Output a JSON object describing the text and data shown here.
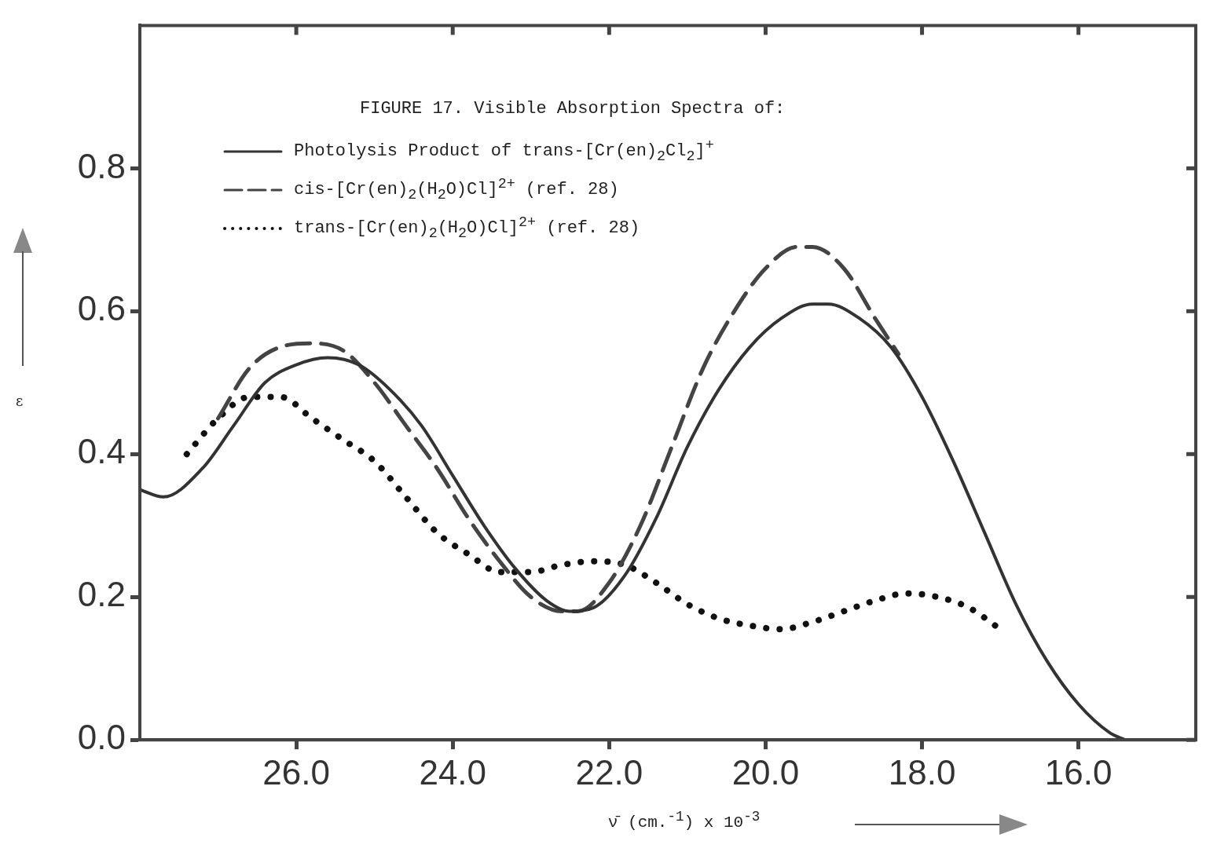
{
  "chart_data": {
    "type": "line",
    "title": "FIGURE 17. Visible Absorption Spectra of:",
    "xlabel": "ν̄ (cm.$^{-1}$) x 10$^{-3}$",
    "ylabel": "ε",
    "series": [
      {
        "name": "Photolysis Product of trans-[Cr(en)$_{2}$Cl$_{2}$]$^{+}$",
        "color": "#333333",
        "line_style": "solid",
        "x": [
          28.0,
          27.7,
          27.2,
          26.8,
          26.4,
          26.0,
          25.6,
          25.2,
          24.8,
          24.4,
          24.0,
          23.6,
          23.2,
          22.8,
          22.5,
          22.2,
          21.8,
          21.4,
          21.0,
          20.6,
          20.2,
          19.8,
          19.4,
          19.2,
          18.8,
          18.4,
          18.0,
          17.6,
          17.2,
          16.8,
          16.4,
          16.0,
          15.6,
          15.4
        ],
        "values": [
          0.35,
          0.34,
          0.38,
          0.44,
          0.5,
          0.525,
          0.535,
          0.525,
          0.49,
          0.44,
          0.37,
          0.3,
          0.24,
          0.195,
          0.18,
          0.185,
          0.23,
          0.31,
          0.41,
          0.49,
          0.55,
          0.59,
          0.61,
          0.61,
          0.59,
          0.55,
          0.48,
          0.39,
          0.29,
          0.19,
          0.11,
          0.05,
          0.01,
          0.0
        ]
      },
      {
        "name": "cis-[Cr(en)$_{2}$(H$_{2}$O)Cl]$^{2+}$ (ref. 28)",
        "color": "#444444",
        "line_style": "dashed",
        "x": [
          27.0,
          26.6,
          26.2,
          25.8,
          25.4,
          25.0,
          24.6,
          24.2,
          23.8,
          23.4,
          23.0,
          22.6,
          22.4,
          22.0,
          21.6,
          21.2,
          20.8,
          20.4,
          20.0,
          19.6,
          19.4,
          19.0,
          18.6,
          18.3
        ],
        "values": [
          0.45,
          0.52,
          0.55,
          0.555,
          0.545,
          0.5,
          0.44,
          0.38,
          0.31,
          0.25,
          0.2,
          0.18,
          0.18,
          0.22,
          0.3,
          0.41,
          0.52,
          0.6,
          0.66,
          0.69,
          0.69,
          0.66,
          0.59,
          0.54
        ]
      },
      {
        "name": "trans-[Cr(en)$_{2}$(H$_{2}$O)Cl]$^{2+}$ (ref. 28)",
        "color": "#111111",
        "line_style": "dotted",
        "x": [
          27.4,
          27.0,
          26.6,
          26.2,
          25.8,
          25.4,
          25.0,
          24.6,
          24.2,
          23.8,
          23.4,
          23.0,
          22.6,
          22.2,
          21.8,
          21.4,
          21.0,
          20.6,
          20.2,
          19.8,
          19.4,
          19.0,
          18.6,
          18.2,
          17.8,
          17.4,
          17.0
        ],
        "values": [
          0.4,
          0.45,
          0.48,
          0.48,
          0.45,
          0.42,
          0.39,
          0.34,
          0.29,
          0.26,
          0.235,
          0.235,
          0.245,
          0.25,
          0.245,
          0.22,
          0.19,
          0.17,
          0.16,
          0.155,
          0.165,
          0.18,
          0.195,
          0.205,
          0.2,
          0.185,
          0.155
        ]
      }
    ],
    "xlim": [
      28.0,
      14.5
    ],
    "xticks": [
      {
        "value": 26,
        "label": "26.0"
      },
      {
        "value": 24,
        "label": "24.0"
      },
      {
        "value": 22,
        "label": "22.0"
      },
      {
        "value": 20,
        "label": "20.0"
      },
      {
        "value": 18,
        "label": "18.0"
      },
      {
        "value": 16,
        "label": "16.0"
      }
    ],
    "ylim": [
      0,
      1.0
    ],
    "yticks": [
      {
        "value": 0,
        "label": "0.0"
      },
      0.2,
      0.4,
      0.6,
      0.8
    ],
    "grid": false,
    "legend": "top left",
    "marker": "none"
  }
}
